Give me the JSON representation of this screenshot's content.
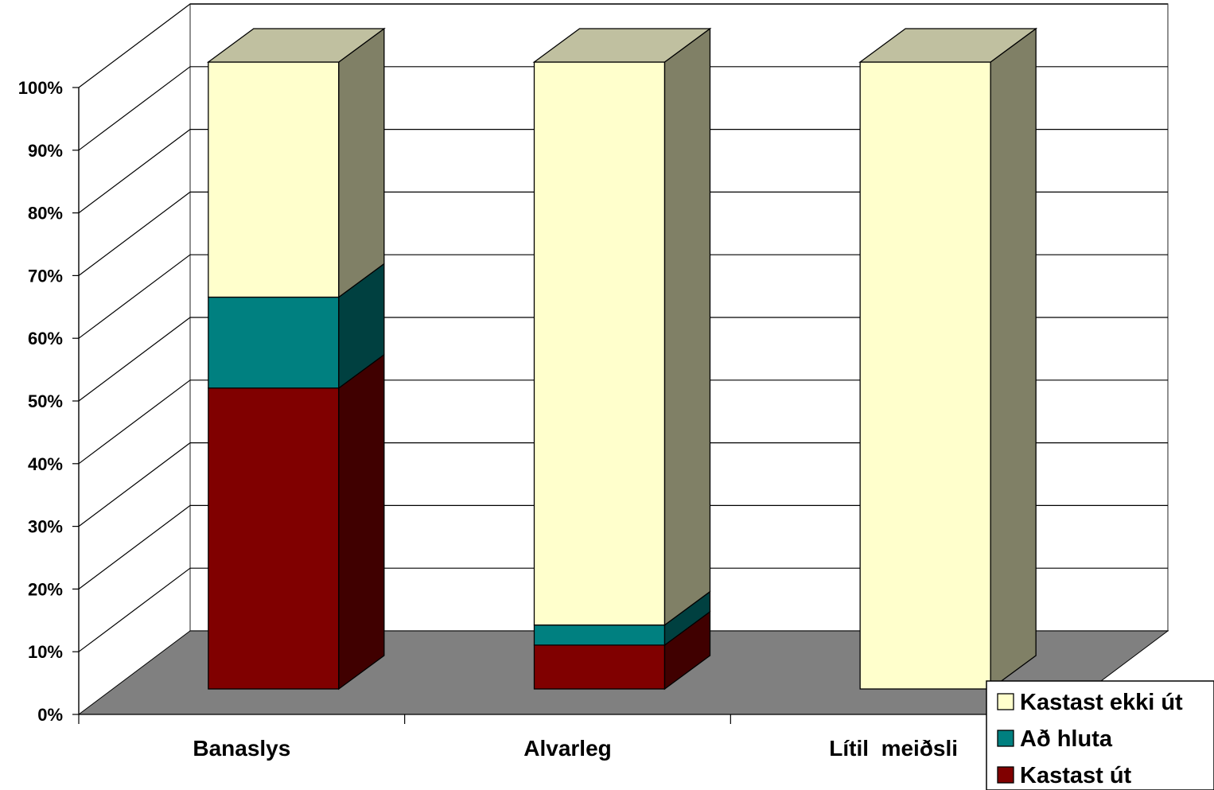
{
  "chart_data": {
    "type": "bar",
    "stacked": true,
    "three_d": true,
    "percent_stacked": true,
    "categories": [
      "Banaslys",
      "Alvarleg",
      "Lítil  meiðsli"
    ],
    "series": [
      {
        "name": "Kastast út",
        "values": [
          48,
          7,
          0
        ],
        "color": "#800000",
        "side_color": "#400000",
        "top_color": "#800000"
      },
      {
        "name": "Að hluta",
        "values": [
          14.5,
          3.2,
          0
        ],
        "color": "#008080",
        "side_color": "#004040",
        "top_color": "#008080"
      },
      {
        "name": "Kastast ekki út",
        "values": [
          37.5,
          89.8,
          100
        ],
        "color": "#ffffcc",
        "side_color": "#808066",
        "top_color": "#c0c0a0"
      }
    ],
    "yticks": [
      "0%",
      "10%",
      "20%",
      "30%",
      "40%",
      "50%",
      "60%",
      "70%",
      "80%",
      "90%",
      "100%"
    ],
    "ylim": [
      0,
      100
    ],
    "grid": true,
    "floor_color": "#808080",
    "legend": {
      "position": "bottom-right",
      "entries": [
        "Kastast ekki út",
        "Að hluta",
        "Kastast út"
      ]
    }
  }
}
